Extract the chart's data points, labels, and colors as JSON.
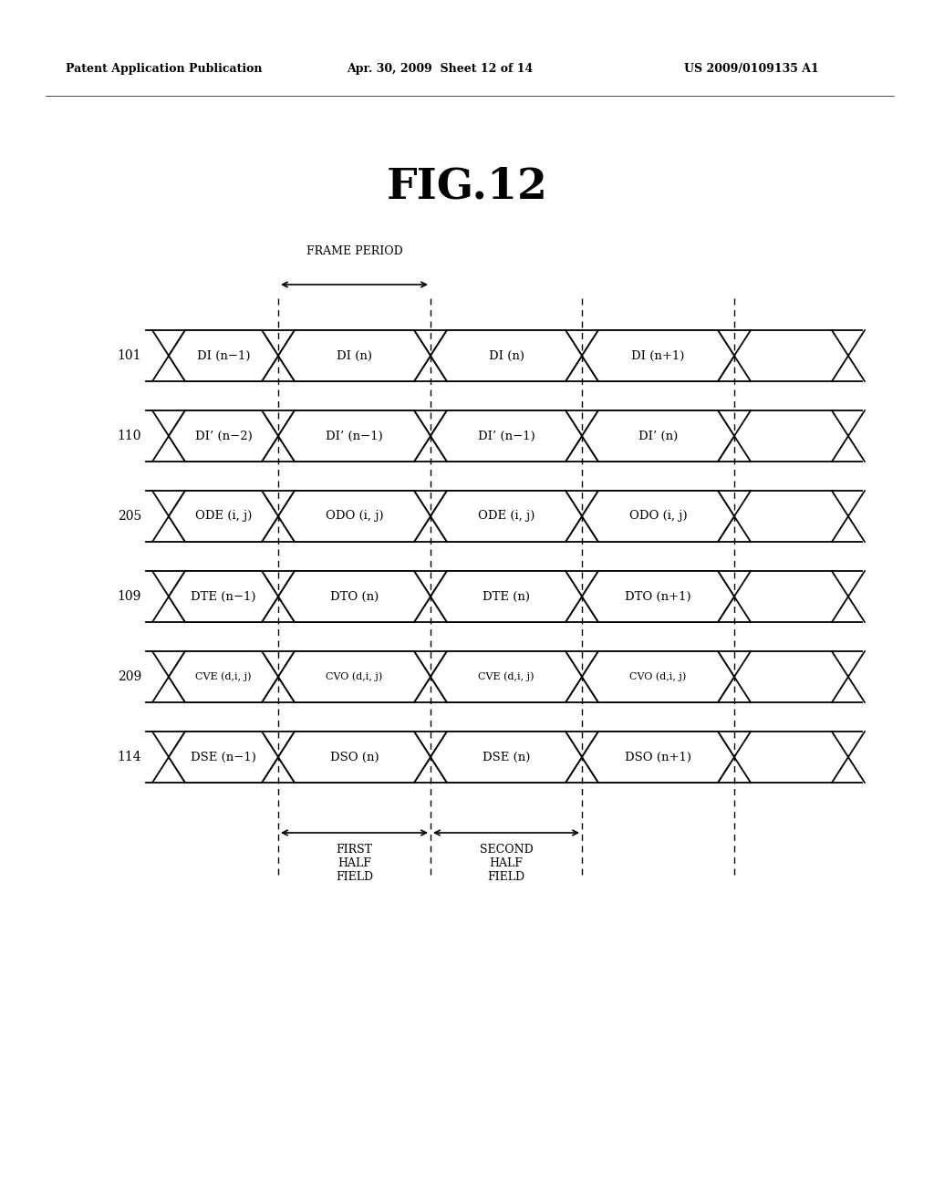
{
  "title": "FIG.12",
  "header_left": "Patent Application Publication",
  "header_mid": "Apr. 30, 2009  Sheet 12 of 14",
  "header_right": "US 2009/0109135 A1",
  "rows": [
    {
      "label": "101",
      "signals": [
        "DI (n−1)",
        "DI (n)",
        "DI (n)",
        "DI (n+1)"
      ]
    },
    {
      "label": "110",
      "signals": [
        "DI’ (n−2)",
        "DI’ (n−1)",
        "DI’ (n−1)",
        "DI’ (n)"
      ]
    },
    {
      "label": "205",
      "signals": [
        "ODE (i, j)",
        "ODO (i, j)",
        "ODE (i, j)",
        "ODO (i, j)"
      ]
    },
    {
      "label": "109",
      "signals": [
        "DTE (n−1)",
        "DTO (n)",
        "DTE (n)",
        "DTO (n+1)"
      ]
    },
    {
      "label": "209",
      "signals": [
        "CVE (d,i, j)",
        "CVO (d,i, j)",
        "CVE (d,i, j)",
        "CVO (d,i, j)"
      ]
    },
    {
      "label": "114",
      "signals": [
        "DSE (n−1)",
        "DSO (n)",
        "DSE (n)",
        "DSO (n+1)"
      ]
    }
  ],
  "background_color": "#ffffff"
}
